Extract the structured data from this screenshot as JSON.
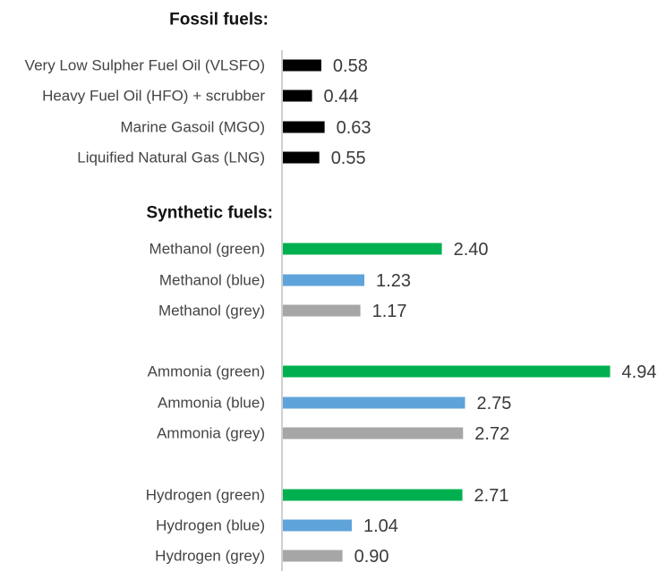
{
  "chart_data": {
    "type": "bar",
    "orientation": "horizontal",
    "grid": false,
    "legend": "none",
    "xlim": [
      0,
      5
    ],
    "groups": [
      {
        "label": "Fossil fuels:",
        "items": [
          {
            "category": "Very Low Sulpher Fuel Oil (VLSFO)",
            "value": 0.58,
            "value_label": "0.58",
            "color": "#000000"
          },
          {
            "category": "Heavy Fuel Oil (HFO) + scrubber",
            "value": 0.44,
            "value_label": "0.44",
            "color": "#000000"
          },
          {
            "category": "Marine Gasoil (MGO)",
            "value": 0.63,
            "value_label": "0.63",
            "color": "#000000"
          },
          {
            "category": "Liquified Natural Gas (LNG)",
            "value": 0.55,
            "value_label": "0.55",
            "color": "#000000"
          }
        ]
      },
      {
        "label": "Synthetic fuels:",
        "items": [
          {
            "category": "Methanol (green)",
            "value": 2.4,
            "value_label": "2.40",
            "color": "#00B050"
          },
          {
            "category": "Methanol (blue)",
            "value": 1.23,
            "value_label": "1.23",
            "color": "#5FA3DB"
          },
          {
            "category": "Methanol (grey)",
            "value": 1.17,
            "value_label": "1.17",
            "color": "#A6A6A6"
          },
          {
            "category": "Ammonia (green)",
            "value": 4.94,
            "value_label": "4.94",
            "color": "#00B050"
          },
          {
            "category": "Ammonia (blue)",
            "value": 2.75,
            "value_label": "2.75",
            "color": "#5FA3DB"
          },
          {
            "category": "Ammonia (grey)",
            "value": 2.72,
            "value_label": "2.72",
            "color": "#A6A6A6"
          },
          {
            "category": "Hydrogen (green)",
            "value": 2.71,
            "value_label": "2.71",
            "color": "#00B050"
          },
          {
            "category": "Hydrogen (blue)",
            "value": 1.04,
            "value_label": "1.04",
            "color": "#5FA3DB"
          },
          {
            "category": "Hydrogen (grey)",
            "value": 0.9,
            "value_label": "0.90",
            "color": "#A6A6A6"
          }
        ]
      }
    ],
    "axis_color": "#BFBFBF"
  }
}
